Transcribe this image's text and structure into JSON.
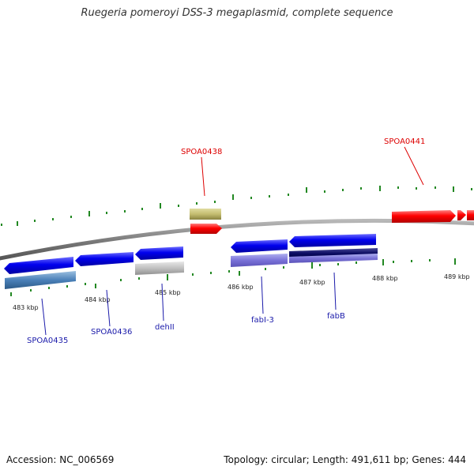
{
  "title": "Ruegeria pomeroyi DSS-3 megaplasmid, complete sequence",
  "footer": {
    "accession": "Accession: NC_006569",
    "summary": "Topology: circular; Length: 491,611 bp; Genes: 444"
  },
  "colors": {
    "backbone": "#8a8a8a",
    "forward_gene": "#ff0000",
    "reverse_gene": "#0000e0",
    "tick": "#228822",
    "label_forward": "#dd0000",
    "label_reverse": "#1a1aaa"
  },
  "scale_labels": [
    "483 kbp",
    "484 kbp",
    "485 kbp",
    "486 kbp",
    "487 kbp",
    "488 kbp",
    "489 kbp"
  ],
  "gene_labels_upper": [
    "SPOA0438",
    "SPOA0441"
  ],
  "gene_labels_lower": [
    "SPOA0435",
    "SPOA0436",
    "dehII",
    "fabI-3",
    "fabB"
  ]
}
